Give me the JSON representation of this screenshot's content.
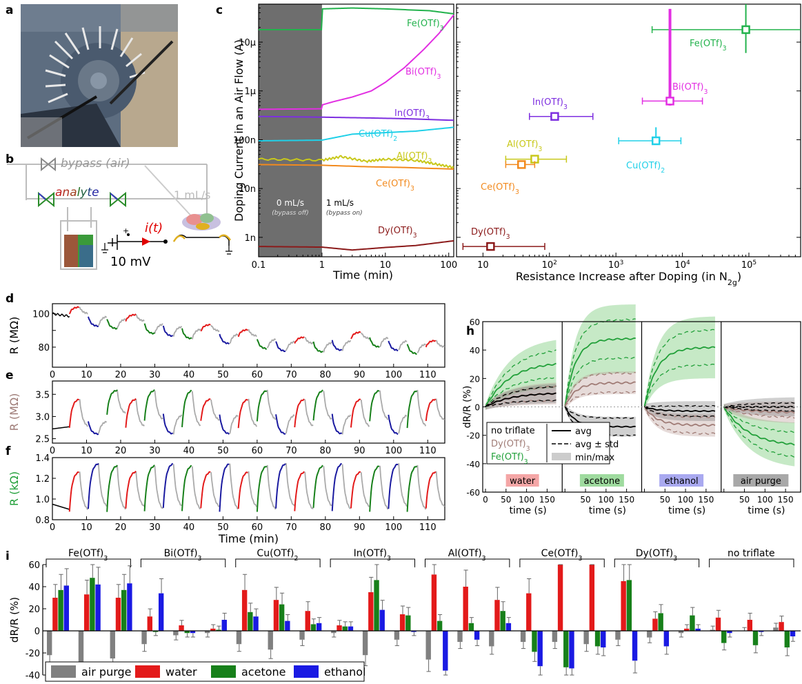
{
  "panel_letters": [
    "a",
    "b",
    "c",
    "d",
    "e",
    "f",
    "h",
    "i"
  ],
  "photo": {
    "label": "a"
  },
  "schematic": {
    "bypass_label": "bypass (air)",
    "analyte_letters": [
      "a",
      "n",
      "a",
      "l",
      "y",
      "t",
      "e"
    ],
    "flow_label": "1 mL/s",
    "current_label": "i(t)",
    "voltage_label": "10 mV"
  },
  "chart_data": [
    {
      "id": "c_left",
      "type": "line",
      "xlabel": "Time (min)",
      "ylabel": "Doping Current in an Air Flow (A)",
      "x_scale": "log",
      "y_scale": "log",
      "xlim": [
        0.1,
        120
      ],
      "ylim": [
        0.0004,
        60
      ],
      "x_ticks": [
        {
          "v": 0.1,
          "label": "0.1"
        },
        {
          "v": 1,
          "label": "1"
        },
        {
          "v": 10,
          "label": "10"
        },
        {
          "v": 100,
          "label": "100"
        }
      ],
      "y_ticks": [
        {
          "v": 0.001,
          "label": "1n"
        },
        {
          "v": 0.01,
          "label": "10n"
        },
        {
          "v": 0.1,
          "label": "100n"
        },
        {
          "v": 1,
          "label": "1μ"
        },
        {
          "v": 10,
          "label": "10μ"
        }
      ],
      "shade": {
        "x0": 0.1,
        "x1": 1,
        "left_text": "0 mL/s",
        "left_sub": "(bypass off)",
        "right_text": "1 mL/s",
        "right_sub": "(bypass on)"
      },
      "series": [
        {
          "name": "Fe(OTf)3",
          "color": "#22b24c",
          "points": [
            [
              0.1,
              18
            ],
            [
              0.98,
              18
            ],
            [
              1.02,
              48
            ],
            [
              3,
              50
            ],
            [
              10,
              48
            ],
            [
              50,
              44
            ],
            [
              120,
              38
            ]
          ]
        },
        {
          "name": "Bi(OTf)3",
          "color": "#e22fe2",
          "points": [
            [
              0.1,
              0.42
            ],
            [
              0.98,
              0.43
            ],
            [
              1.02,
              0.52
            ],
            [
              1.5,
              0.6
            ],
            [
              3,
              0.75
            ],
            [
              6,
              1.0
            ],
            [
              10,
              1.5
            ],
            [
              20,
              3
            ],
            [
              40,
              7
            ],
            [
              70,
              15
            ],
            [
              120,
              36
            ]
          ]
        },
        {
          "name": "In(OTf)3",
          "color": "#7d2ee0",
          "points": [
            [
              0.1,
              0.3
            ],
            [
              1,
              0.29
            ],
            [
              5,
              0.28
            ],
            [
              20,
              0.27
            ],
            [
              120,
              0.25
            ]
          ]
        },
        {
          "name": "Cu(OTf)2",
          "color": "#20d0e8",
          "points": [
            [
              0.1,
              0.095
            ],
            [
              1,
              0.098
            ],
            [
              3,
              0.13
            ],
            [
              10,
              0.14
            ],
            [
              30,
              0.15
            ],
            [
              120,
              0.18
            ]
          ]
        },
        {
          "name": "Al(OTf)3",
          "color": "#c8c81a",
          "points": [
            [
              0.1,
              0.04
            ],
            [
              1,
              0.038
            ],
            [
              2,
              0.045
            ],
            [
              5,
              0.036
            ],
            [
              10,
              0.04
            ],
            [
              30,
              0.038
            ],
            [
              60,
              0.032
            ],
            [
              120,
              0.027
            ]
          ]
        },
        {
          "name": "Ce(OTf)3",
          "color": "#f28a1e",
          "points": [
            [
              0.1,
              0.031
            ],
            [
              1,
              0.03
            ],
            [
              5,
              0.028
            ],
            [
              20,
              0.027
            ],
            [
              120,
              0.025
            ]
          ]
        },
        {
          "name": "Dy(OTf)3",
          "color": "#8b1a1a",
          "points": [
            [
              0.1,
              0.00065
            ],
            [
              1,
              0.00063
            ],
            [
              3,
              0.00055
            ],
            [
              10,
              0.00062
            ],
            [
              30,
              0.00068
            ],
            [
              120,
              0.00085
            ]
          ]
        }
      ]
    },
    {
      "id": "c_right",
      "type": "scatter",
      "xlabel": "Resistance Increase after Doping (in N",
      "xlabel_sub": "2g",
      "xlabel_end": ")",
      "x_scale": "log",
      "y_scale": "log",
      "xlim": [
        4,
        600000
      ],
      "ylim": [
        0.0004,
        60
      ],
      "x_ticks": [
        {
          "v": 10,
          "label": "10"
        },
        {
          "v": 100,
          "label": "10",
          "sup": "2"
        },
        {
          "v": 1000,
          "label": "10",
          "sup": "3"
        },
        {
          "v": 10000,
          "label": "10",
          "sup": "4"
        },
        {
          "v": 100000,
          "label": "10",
          "sup": "5"
        }
      ],
      "points": [
        {
          "name": "Fe(OTf)3",
          "color": "#22b24c",
          "x": 90000,
          "y": 18,
          "xerr": [
            3500,
            600000
          ],
          "yerr": [
            6,
            65
          ]
        },
        {
          "name": "Bi(OTf)3",
          "color": "#e22fe2",
          "x": 6500,
          "y": 0.62,
          "xerr": [
            2500,
            20000
          ],
          "yerr": [
            0.5,
            48
          ]
        },
        {
          "name": "In(OTf)3",
          "color": "#7d2ee0",
          "x": 120,
          "y": 0.3,
          "xerr": [
            50,
            450
          ],
          "yerr": [
            0.28,
            0.33
          ]
        },
        {
          "name": "Cu(OTf)2",
          "color": "#20d0e8",
          "x": 4000,
          "y": 0.095,
          "xerr": [
            1100,
            9500
          ],
          "yerr": [
            0.08,
            0.18
          ]
        },
        {
          "name": "Al(OTf)3",
          "color": "#c8c81a",
          "x": 60,
          "y": 0.04,
          "xerr": [
            22,
            180
          ],
          "yerr": [
            0.035,
            0.046
          ]
        },
        {
          "name": "Ce(OTf)3",
          "color": "#f28a1e",
          "x": 38,
          "y": 0.031,
          "xerr": [
            22,
            60
          ],
          "yerr": [
            0.028,
            0.034
          ]
        },
        {
          "name": "Dy(OTf)3",
          "color": "#8b1a1a",
          "x": 13,
          "y": 0.00065,
          "xerr": [
            5,
            85
          ],
          "yerr": [
            0.0006,
            0.0007
          ]
        }
      ]
    },
    {
      "id": "d",
      "type": "line",
      "ylabel": "R (MΩ)",
      "ylabel_color": "#000000",
      "xlim": [
        0,
        115
      ],
      "ylim": [
        68,
        106
      ],
      "y_ticks": [
        80,
        90,
        100
      ],
      "y_tick_labels": [
        "80",
        "",
        "100"
      ],
      "levels": [
        [
          0,
          98,
          100
        ],
        [
          5,
          102,
          98
        ],
        [
          10,
          98,
          102
        ],
        [
          18,
          77,
          98
        ],
        [
          24,
          80,
          78
        ],
        [
          30,
          75,
          84
        ],
        [
          34,
          74,
          76
        ],
        [
          40,
          72,
          74
        ],
        [
          46,
          70,
          72
        ],
        [
          50,
          75,
          72
        ],
        [
          55,
          73,
          75
        ],
        [
          60,
          73,
          73
        ],
        [
          66,
          72,
          73
        ],
        [
          70,
          78,
          72
        ],
        [
          75,
          80,
          78
        ],
        [
          80,
          77,
          80
        ],
        [
          85,
          83,
          77
        ],
        [
          90,
          87,
          90
        ],
        [
          95,
          80,
          87
        ],
        [
          100,
          78,
          80
        ],
        [
          106,
          80,
          78
        ],
        [
          110,
          80,
          80
        ],
        [
          115,
          80,
          80
        ]
      ]
    },
    {
      "id": "e",
      "type": "line",
      "ylabel": "R (MΩ)",
      "ylabel_color": "#9e7c77",
      "xlim": [
        0,
        115
      ],
      "ylim": [
        2.4,
        3.8
      ],
      "y_ticks": [
        2.5,
        3.0,
        3.5
      ],
      "y_tick_labels": [
        "2.5",
        "3.0",
        "3.5"
      ]
    },
    {
      "id": "f",
      "type": "line",
      "ylabel": "R (kΩ)",
      "ylabel_color": "#22a03a",
      "xlabel": "Time (min)",
      "xlim": [
        0,
        115
      ],
      "ylim": [
        0.8,
        1.4
      ],
      "y_ticks": [
        0.8,
        1.0,
        1.2,
        1.4
      ],
      "y_tick_labels": [
        "0.8",
        "1.0",
        "1.2",
        "1.4"
      ]
    },
    {
      "id": "h",
      "type": "line",
      "ylabel": "dR/R (%)",
      "xlabel": "time (s)",
      "ylim": [
        -60,
        60
      ],
      "y_ticks": [
        -60,
        -40,
        -20,
        0,
        20,
        40,
        60
      ],
      "x_ticks": [
        0,
        50,
        100,
        150
      ],
      "segments": [
        {
          "label": "water",
          "bg": "#f4a6a6"
        },
        {
          "label": "acetone",
          "bg": "#9fdb9f"
        },
        {
          "label": "ethanol",
          "bg": "#a9a9f0"
        },
        {
          "label": "air purge",
          "bg": "#a8a8a8"
        }
      ],
      "legend": {
        "rows": [
          {
            "label": "no triflate",
            "color": "#000000",
            "style_label": "avg"
          },
          {
            "label": "Dy(OTf)3",
            "color": "#a07c76",
            "style_label": "avg ± std"
          },
          {
            "label": "Fe(OTf)3",
            "color": "#22a03a",
            "style_label": "min/max"
          }
        ]
      },
      "curves": {
        "fe": [
          32,
          48,
          42,
          -28
        ],
        "dy": [
          10,
          17,
          -13,
          -4
        ],
        "no": [
          10,
          -14,
          -3,
          0
        ]
      }
    },
    {
      "id": "i",
      "type": "bar",
      "ylabel": "dR/R (%)",
      "ylim": [
        -40,
        60
      ],
      "y_ticks": [
        -40,
        -20,
        0,
        20,
        40,
        60
      ],
      "legend": [
        {
          "name": "air purge",
          "color": "#808080"
        },
        {
          "name": "water",
          "color": "#e31a1a"
        },
        {
          "name": "acetone",
          "color": "#17801a"
        },
        {
          "name": "ethanol",
          "color": "#1a1ae3"
        }
      ],
      "groups": [
        {
          "name": "Fe(OTf)3",
          "cycles": [
            [
              -22,
              30,
              37,
              41
            ],
            [
              -28,
              33,
              48,
              42
            ],
            [
              -25,
              30,
              37,
              43
            ]
          ]
        },
        {
          "name": "Bi(OTf)3",
          "cycles": [
            [
              -12,
              13,
              -1,
              34
            ],
            [
              -4,
              5,
              -2,
              -2
            ],
            [
              -2,
              2,
              1,
              10
            ]
          ]
        },
        {
          "name": "Cu(OTf)2",
          "cycles": [
            [
              -12,
              37,
              17,
              13
            ],
            [
              -17,
              28,
              24,
              9
            ],
            [
              -8,
              18,
              6,
              7
            ]
          ]
        },
        {
          "name": "In(OTf)3",
          "cycles": [
            [
              -2,
              5,
              4,
              4
            ],
            [
              -22,
              35,
              46,
              19
            ],
            [
              -8,
              15,
              14,
              -1
            ]
          ]
        },
        {
          "name": "Al(OTf)3",
          "cycles": [
            [
              -26,
              51,
              9,
              -36
            ],
            [
              -10,
              40,
              7,
              -8
            ],
            [
              -14,
              28,
              18,
              7
            ]
          ]
        },
        {
          "name": "Ce(OTf)3",
          "cycles": [
            [
              -10,
              34,
              -19,
              -32
            ],
            [
              -10,
              60,
              -33,
              -34
            ],
            [
              -12,
              60,
              -14,
              -15
            ]
          ]
        },
        {
          "name": "Dy(OTf)3",
          "cycles": [
            [
              -8,
              45,
              46,
              -27
            ],
            [
              -6,
              11,
              16,
              -14
            ],
            [
              -2,
              2,
              14,
              2
            ]
          ]
        },
        {
          "name": "no triflate",
          "cycles": [
            [
              1,
              12,
              -11,
              -2
            ],
            [
              0,
              10,
              -13,
              -1
            ],
            [
              3,
              8,
              -15,
              -5
            ]
          ]
        }
      ]
    }
  ]
}
